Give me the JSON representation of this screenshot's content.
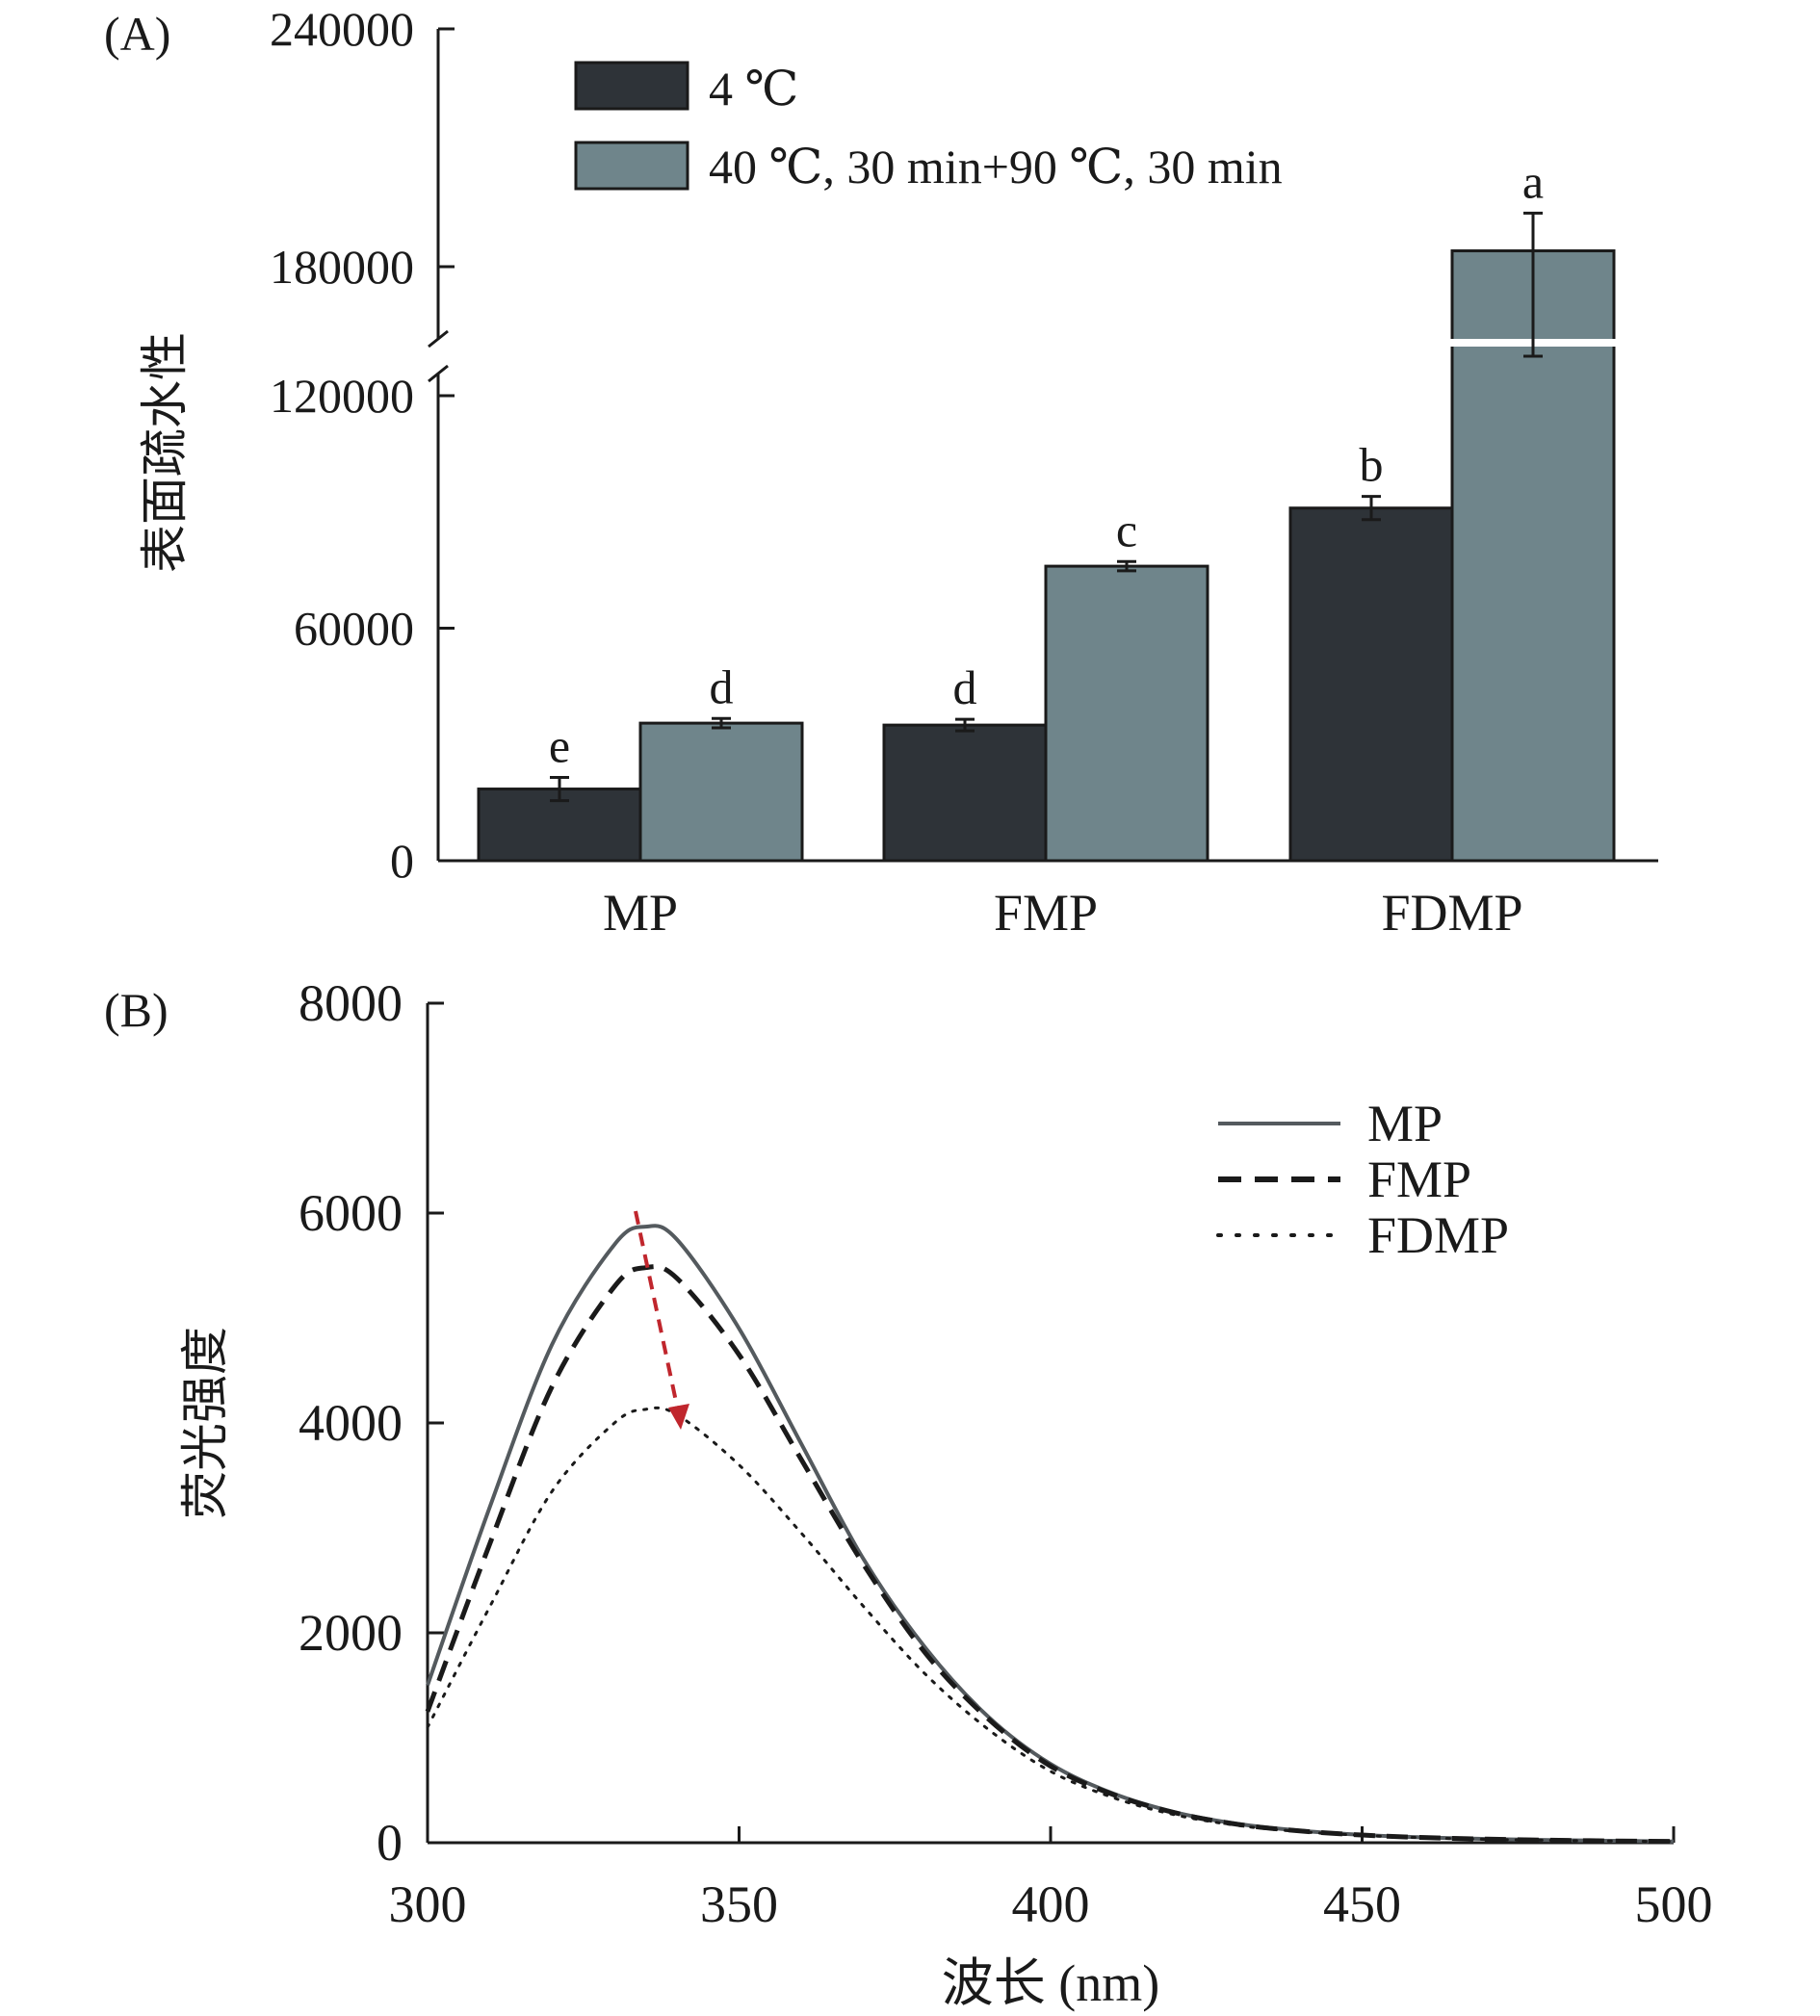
{
  "colors": {
    "series_4c": "#2e3338",
    "series_heat": "#6f858b",
    "mp_line": "#545a5e",
    "fmp_line": "#1a1a1a",
    "fdmp_line": "#1a1a1a",
    "arrow": "#c0262d"
  },
  "chart_data": [
    {
      "type": "bar",
      "panel_label": "(A)",
      "title": "",
      "xlabel": "",
      "ylabel": "表面疏水性",
      "categories": [
        "MP",
        "FMP",
        "FDMP"
      ],
      "ylim": [
        0,
        240000
      ],
      "axis_break": [
        120000,
        180000
      ],
      "yticks": [
        0,
        60000,
        120000,
        180000,
        240000
      ],
      "ytick_labels": [
        "0",
        "60000",
        "120000",
        "180000",
        "240000"
      ],
      "legend_position": "top-center",
      "series": [
        {
          "name": "4 ℃",
          "values": [
            18500,
            35000,
            91000
          ],
          "errors": [
            3000,
            1500,
            3000
          ],
          "letters": [
            "e",
            "d",
            "b"
          ]
        },
        {
          "name": "40 ℃, 30 min+90 ℃, 30 min",
          "values": [
            35500,
            76000,
            184000
          ],
          "errors": [
            1200,
            1200,
            9500
          ],
          "letters": [
            "d",
            "c",
            "a"
          ]
        }
      ],
      "grid": false
    },
    {
      "type": "line",
      "panel_label": "(B)",
      "title": "",
      "xlabel": "波长 (nm)",
      "ylabel": "荧光强度",
      "xlim": [
        300,
        500
      ],
      "ylim": [
        0,
        8000
      ],
      "xticks": [
        300,
        350,
        400,
        450,
        500
      ],
      "yticks": [
        0,
        2000,
        4000,
        6000,
        8000
      ],
      "legend_position": "top-right",
      "x": [
        300,
        310,
        320,
        330,
        335,
        340,
        350,
        360,
        370,
        380,
        390,
        400,
        410,
        420,
        430,
        440,
        450,
        460,
        470,
        480,
        490,
        500
      ],
      "series": [
        {
          "name": "MP",
          "style": "solid",
          "values": [
            1500,
            3200,
            4750,
            5700,
            5870,
            5750,
            4900,
            3800,
            2700,
            1850,
            1200,
            750,
            470,
            290,
            180,
            115,
            75,
            50,
            35,
            25,
            18,
            12
          ]
        },
        {
          "name": "FMP",
          "style": "dashed",
          "values": [
            1250,
            2850,
            4350,
            5300,
            5480,
            5380,
            4650,
            3650,
            2650,
            1800,
            1180,
            730,
            460,
            285,
            175,
            112,
            73,
            49,
            34,
            24,
            17,
            12
          ]
        },
        {
          "name": "FDMP",
          "style": "dotted",
          "values": [
            1100,
            2250,
            3350,
            4000,
            4130,
            4080,
            3600,
            2950,
            2250,
            1600,
            1080,
            680,
            430,
            265,
            165,
            105,
            70,
            47,
            32,
            23,
            16,
            11
          ]
        }
      ],
      "grid": false
    }
  ]
}
